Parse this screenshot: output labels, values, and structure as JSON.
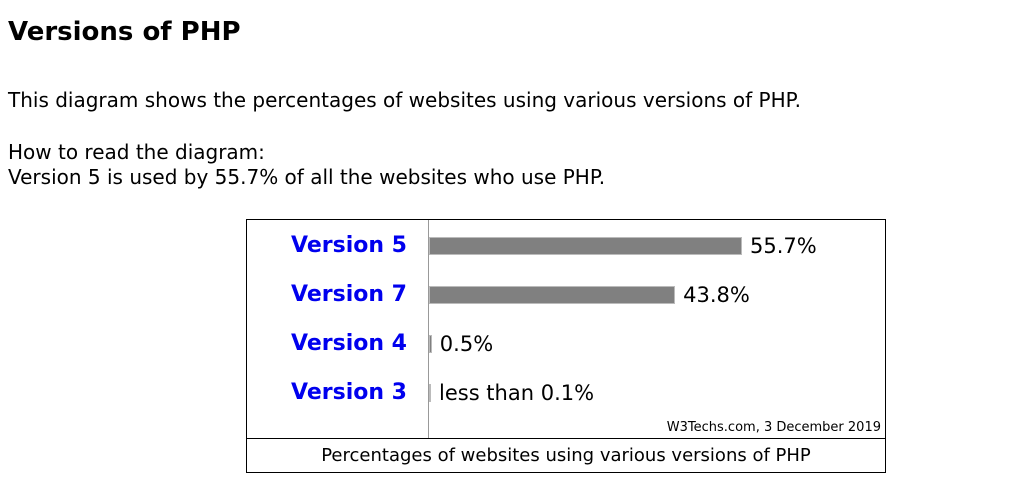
{
  "page": {
    "title": "Versions of PHP",
    "intro": "This diagram shows the percentages of websites using various versions of PHP.",
    "howto_heading": "How to read the diagram:",
    "howto_text": "Version 5 is used by 55.7% of all the websites who use PHP."
  },
  "chart_data": {
    "type": "bar",
    "orientation": "horizontal",
    "categories": [
      "Version 5",
      "Version 7",
      "Version 4",
      "Version 3"
    ],
    "values": [
      55.7,
      43.8,
      0.5,
      0.1
    ],
    "data_labels": [
      "55.7%",
      "43.8%",
      "0.5%",
      "less than 0.1%"
    ],
    "title": "Percentages of websites using various versions of PHP",
    "source": "W3Techs.com, 3 December 2019",
    "bar_color": "#808080",
    "category_color": "#0000ee",
    "xlim": [
      0,
      100
    ],
    "grid": false
  }
}
